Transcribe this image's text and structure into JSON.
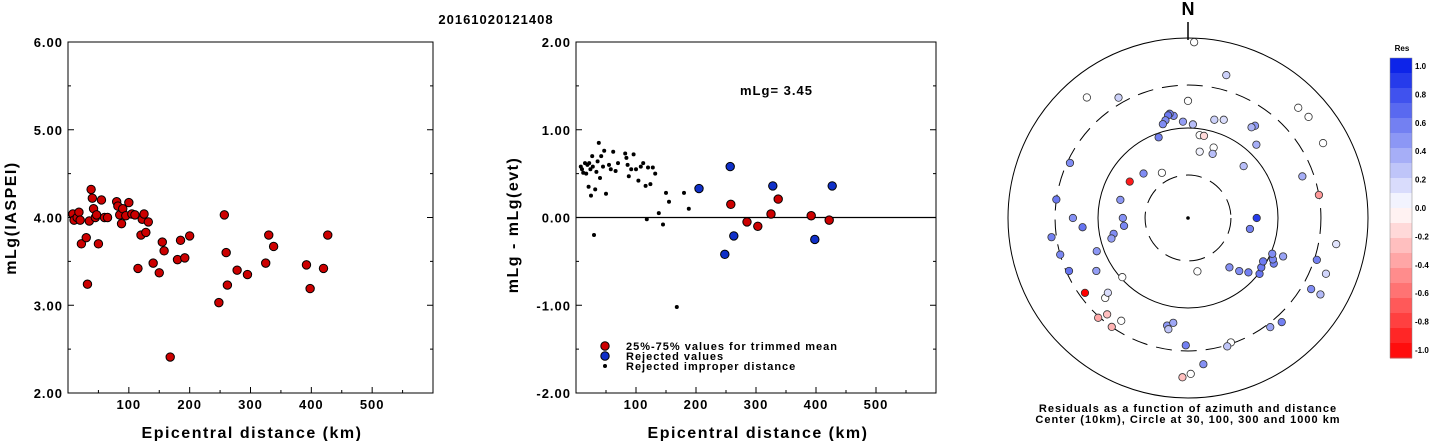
{
  "title": "20161020121408",
  "chart_data": [
    {
      "type": "scatter",
      "id": "magnitude",
      "xlabel": "Epicentral distance (km)",
      "ylabel": "mLg(IASPEI)",
      "xlim": [
        0,
        600
      ],
      "ylim": [
        2.0,
        6.0
      ],
      "xticks": [
        "100",
        "200",
        "300",
        "400",
        "500"
      ],
      "yticks": [
        "2.00",
        "3.00",
        "4.00",
        "5.00",
        "6.00"
      ],
      "points": [
        [
          8,
          4.04
        ],
        [
          10,
          3.97
        ],
        [
          15,
          4.0
        ],
        [
          18,
          4.06
        ],
        [
          20,
          3.97
        ],
        [
          22,
          3.7
        ],
        [
          30,
          3.77
        ],
        [
          32,
          3.24
        ],
        [
          35,
          3.96
        ],
        [
          38,
          4.32
        ],
        [
          40,
          4.22
        ],
        [
          42,
          4.1
        ],
        [
          45,
          4.0
        ],
        [
          47,
          4.03
        ],
        [
          50,
          3.7
        ],
        [
          55,
          4.2
        ],
        [
          60,
          4.0
        ],
        [
          65,
          4.0
        ],
        [
          80,
          4.18
        ],
        [
          82,
          4.13
        ],
        [
          85,
          4.03
        ],
        [
          88,
          3.93
        ],
        [
          90,
          4.1
        ],
        [
          95,
          4.02
        ],
        [
          100,
          4.17
        ],
        [
          105,
          4.04
        ],
        [
          110,
          4.03
        ],
        [
          115,
          3.42
        ],
        [
          120,
          3.8
        ],
        [
          122,
          3.98
        ],
        [
          125,
          4.04
        ],
        [
          128,
          3.83
        ],
        [
          132,
          3.95
        ],
        [
          140,
          3.48
        ],
        [
          150,
          3.37
        ],
        [
          155,
          3.72
        ],
        [
          158,
          3.62
        ],
        [
          168,
          2.41
        ],
        [
          180,
          3.52
        ],
        [
          185,
          3.74
        ],
        [
          192,
          3.54
        ],
        [
          200,
          3.79
        ],
        [
          248,
          3.03
        ],
        [
          257,
          4.03
        ],
        [
          260,
          3.6
        ],
        [
          262,
          3.23
        ],
        [
          278,
          3.4
        ],
        [
          295,
          3.35
        ],
        [
          325,
          3.48
        ],
        [
          330,
          3.8
        ],
        [
          338,
          3.67
        ],
        [
          392,
          3.46
        ],
        [
          398,
          3.19
        ],
        [
          420,
          3.42
        ],
        [
          427,
          3.8
        ]
      ]
    },
    {
      "type": "scatter",
      "id": "residuals",
      "xlabel": "Epicentral distance (km)",
      "ylabel": "mLg - mLg(evt)",
      "xlim": [
        0,
        600
      ],
      "ylim": [
        -2.0,
        2.0
      ],
      "xticks": [
        "100",
        "200",
        "300",
        "400",
        "500"
      ],
      "yticks": [
        "-2.00",
        "-1.00",
        "0.00",
        "1.00",
        "2.00"
      ],
      "annotation": "mLg= 3.45",
      "legend": [
        {
          "label": "25%-75% values for trimmed mean",
          "color": "#cc0000"
        },
        {
          "label": "Rejected values",
          "color": "#1030c8"
        },
        {
          "label": "Rejected improper distance",
          "color": "#000000"
        }
      ],
      "series": [
        {
          "name": "25%-75% values for trimmed mean",
          "color": "#cc0000",
          "points": [
            [
              258,
              0.15
            ],
            [
              285,
              -0.05
            ],
            [
              303,
              -0.1
            ],
            [
              325,
              0.04
            ],
            [
              337,
              0.21
            ],
            [
              392,
              0.02
            ],
            [
              422,
              -0.03
            ]
          ]
        },
        {
          "name": "Rejected values",
          "color": "#1030c8",
          "points": [
            [
              205,
              0.33
            ],
            [
              248,
              -0.42
            ],
            [
              257,
              0.58
            ],
            [
              263,
              -0.21
            ],
            [
              328,
              0.36
            ],
            [
              398,
              -0.25
            ],
            [
              427,
              0.36
            ]
          ]
        },
        {
          "name": "Rejected improper distance",
          "color": "#000000",
          "points": [
            [
              8,
              0.58
            ],
            [
              10,
              0.55
            ],
            [
              12,
              0.51
            ],
            [
              15,
              0.62
            ],
            [
              17,
              0.5
            ],
            [
              19,
              0.6
            ],
            [
              21,
              0.35
            ],
            [
              22,
              0.62
            ],
            [
              24,
              0.55
            ],
            [
              25,
              0.25
            ],
            [
              27,
              0.7
            ],
            [
              28,
              0.58
            ],
            [
              30,
              -0.2
            ],
            [
              32,
              0.32
            ],
            [
              34,
              0.52
            ],
            [
              36,
              0.64
            ],
            [
              38,
              0.85
            ],
            [
              40,
              0.45
            ],
            [
              42,
              0.7
            ],
            [
              45,
              0.58
            ],
            [
              47,
              0.76
            ],
            [
              50,
              0.27
            ],
            [
              55,
              0.6
            ],
            [
              58,
              0.55
            ],
            [
              62,
              0.75
            ],
            [
              66,
              0.53
            ],
            [
              70,
              0.62
            ],
            [
              82,
              0.73
            ],
            [
              84,
              0.68
            ],
            [
              86,
              0.6
            ],
            [
              88,
              0.47
            ],
            [
              92,
              0.55
            ],
            [
              96,
              0.72
            ],
            [
              100,
              0.55
            ],
            [
              104,
              0.42
            ],
            [
              108,
              0.58
            ],
            [
              112,
              0.62
            ],
            [
              116,
              0.36
            ],
            [
              118,
              -0.02
            ],
            [
              120,
              0.57
            ],
            [
              124,
              0.38
            ],
            [
              128,
              0.57
            ],
            [
              132,
              0.5
            ],
            [
              138,
              0.05
            ],
            [
              145,
              -0.08
            ],
            [
              150,
              0.28
            ],
            [
              155,
              0.18
            ],
            [
              168,
              -1.02
            ],
            [
              180,
              0.28
            ],
            [
              188,
              0.1
            ]
          ]
        }
      ]
    },
    {
      "type": "scatter",
      "id": "azimuth",
      "subtype": "polar",
      "north_label": "N",
      "caption_line1": "Residuals as a function of azimuth and distance",
      "caption_line2": "Center (10km), Circle at 30, 100, 300 and 1000 km",
      "colorbar_title": "Res",
      "colorbar_ticks": [
        "1.0",
        "0.8",
        "0.6",
        "0.4",
        "0.2",
        "0.0",
        "-0.2",
        "-0.4",
        "-0.6",
        "-0.8",
        "-1.0"
      ],
      "color_scale": {
        "positive": "#0018e8",
        "neutral": "#ffffff",
        "negative": "#ff0000"
      },
      "ring_radii_km": [
        30,
        100,
        300,
        1000
      ],
      "points_azimuth_deg_distance_km_residual": [
        [
          161,
          290,
          0.0
        ],
        [
          15,
          440,
          0.2
        ],
        [
          163,
          310,
          0.25
        ],
        [
          330,
          350,
          0.2
        ],
        [
          61,
          520,
          0.0
        ],
        [
          120,
          500,
          0.3
        ],
        [
          112,
          450,
          0.18
        ],
        [
          100,
          470,
          0.12
        ],
        [
          352,
          140,
          0.5
        ],
        [
          350,
          150,
          0.55
        ],
        [
          349,
          145,
          0.58
        ],
        [
          347,
          130,
          0.5
        ],
        [
          345,
          120,
          0.5
        ],
        [
          357,
          118,
          0.42
        ],
        [
          3,
          110,
          0.28
        ],
        [
          8,
          85,
          0.0
        ],
        [
          11,
          85,
          -0.15
        ],
        [
          20,
          68,
          0.0
        ],
        [
          21,
          58,
          0.28
        ],
        [
          340,
          90,
          0.55
        ],
        [
          330,
          38,
          0.0
        ],
        [
          315,
          50,
          0.5
        ],
        [
          302,
          58,
          -0.9
        ],
        [
          285,
          60,
          0.45
        ],
        [
          270,
          53,
          0.48
        ],
        [
          263,
          52,
          0.52
        ],
        [
          258,
          70,
          0.5
        ],
        [
          255,
          76,
          0.42
        ],
        [
          265,
          150,
          0.6
        ],
        [
          228,
          96,
          0.0
        ],
        [
          170,
          40,
          0.0
        ],
        [
          140,
          52,
          0.48
        ],
        [
          136,
          66,
          0.5
        ],
        [
          132,
          80,
          0.55
        ],
        [
          128,
          102,
          0.6
        ],
        [
          124,
          96,
          0.58
        ],
        [
          120,
          92,
          0.57
        ],
        [
          118,
          120,
          0.55
        ],
        [
          116,
          112,
          0.52
        ],
        [
          113,
          104,
          0.5
        ],
        [
          112,
          138,
          0.4
        ],
        [
          100,
          50,
          0.55
        ],
        [
          90,
          58,
          0.85
        ],
        [
          80,
          300,
          -0.4
        ],
        [
          70,
          225,
          0.35
        ],
        [
          47,
          70,
          0.28
        ],
        [
          43,
          130,
          0.35
        ],
        [
          36,
          185,
          0.45
        ],
        [
          35,
          170,
          0.33
        ],
        [
          20,
          145,
          0.15
        ],
        [
          15,
          135,
          0.2
        ],
        [
          0,
          200,
          0.0
        ],
        [
          10,
          56,
          0.05
        ],
        [
          262,
          340,
          0.55
        ],
        [
          278,
          300,
          0.58
        ],
        [
          254,
          300,
          0.52
        ],
        [
          246,
          280,
          0.6
        ],
        [
          270,
          190,
          0.48
        ],
        [
          250,
          120,
          0.45
        ],
        [
          240,
          150,
          0.42
        ],
        [
          226,
          190,
          0.0
        ],
        [
          213,
          230,
          0.0
        ],
        [
          215,
          300,
          -0.3
        ],
        [
          220,
          250,
          -0.25
        ],
        [
          222,
          310,
          -0.35
        ],
        [
          234,
          260,
          -1.0
        ],
        [
          227,
          165,
          0.15
        ],
        [
          191,
          165,
          0.45
        ],
        [
          190,
          180,
          0.25
        ],
        [
          188,
          150,
          0.38
        ],
        [
          181,
          260,
          0.55
        ],
        [
          179,
          540,
          0.0
        ],
        [
          182,
          590,
          -0.25
        ],
        [
          174,
          430,
          0.48
        ],
        [
          143,
          330,
          0.4
        ],
        [
          138,
          360,
          0.55
        ],
        [
          120,
          380,
          0.5
        ],
        [
          108,
          320,
          0.55
        ],
        [
          295,
          280,
          0.5
        ],
        [
          320,
          560,
          0.0
        ],
        [
          45,
          540,
          0.0
        ],
        [
          50,
          560,
          0.0
        ],
        [
          2,
          900,
          0.0
        ]
      ]
    }
  ]
}
